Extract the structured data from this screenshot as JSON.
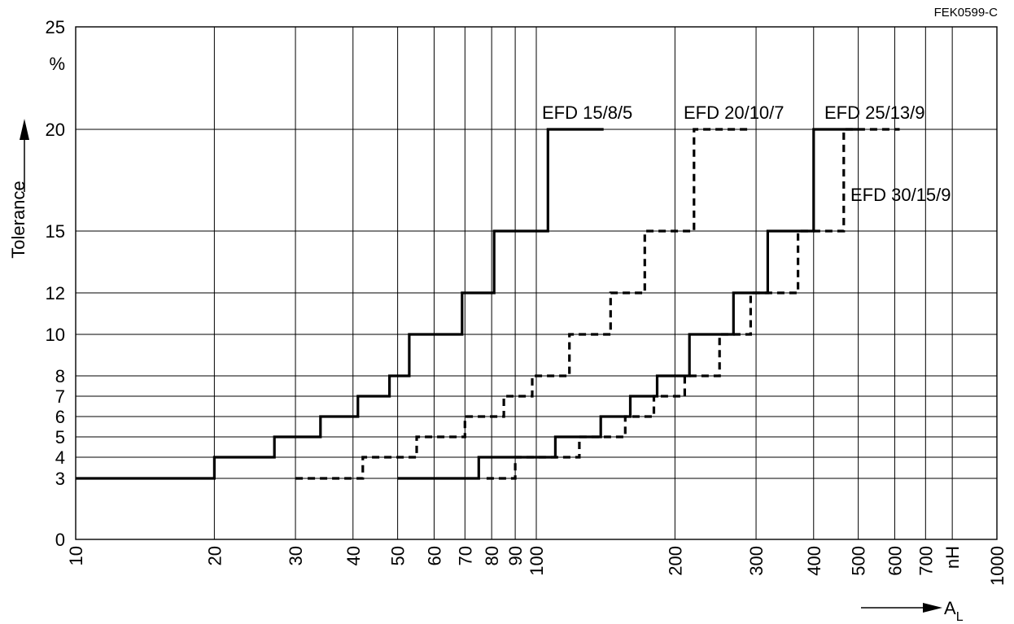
{
  "figure_id": "FEK0599-C",
  "chart_data": {
    "type": "line",
    "x_scale": "log",
    "xlim": [
      10,
      1000
    ],
    "x_tick_labels": [
      "10",
      "20",
      "30",
      "40",
      "50",
      "60",
      "70",
      "80",
      "90",
      "100",
      "200",
      "300",
      "400",
      "500",
      "600",
      "700",
      "nH",
      "1000"
    ],
    "x_tick_values": [
      10,
      20,
      30,
      40,
      50,
      60,
      70,
      80,
      90,
      100,
      200,
      300,
      400,
      500,
      600,
      700,
      800,
      1000
    ],
    "y_tick_labels": [
      "0",
      "3",
      "4",
      "5",
      "6",
      "7",
      "8",
      "10",
      "12",
      "15",
      "20",
      "25",
      "%"
    ],
    "y_tick_values": [
      0,
      3,
      4,
      5,
      6,
      7,
      8,
      10,
      12,
      15,
      20,
      25
    ],
    "ylabel": "Tolerance",
    "xlabel_main": "A",
    "xlabel_sub": "L",
    "grid": true,
    "series": [
      {
        "name": "EFD 15/8/5",
        "style": "solid",
        "points": [
          [
            10,
            3
          ],
          [
            20,
            3
          ],
          [
            20,
            4
          ],
          [
            27,
            4
          ],
          [
            27,
            5
          ],
          [
            34,
            5
          ],
          [
            34,
            6
          ],
          [
            41,
            6
          ],
          [
            41,
            7
          ],
          [
            48,
            7
          ],
          [
            48,
            8
          ],
          [
            53,
            8
          ],
          [
            53,
            10
          ],
          [
            69,
            10
          ],
          [
            69,
            12
          ],
          [
            81,
            12
          ],
          [
            81,
            15
          ],
          [
            106,
            15
          ],
          [
            106,
            20
          ],
          [
            140,
            20
          ]
        ]
      },
      {
        "name": "EFD 20/10/7",
        "style": "dashed",
        "points": [
          [
            30,
            3
          ],
          [
            42,
            3
          ],
          [
            42,
            4
          ],
          [
            55,
            4
          ],
          [
            55,
            5
          ],
          [
            70,
            5
          ],
          [
            70,
            6
          ],
          [
            85,
            6
          ],
          [
            85,
            7
          ],
          [
            98,
            7
          ],
          [
            98,
            8
          ],
          [
            118,
            8
          ],
          [
            118,
            10
          ],
          [
            145,
            10
          ],
          [
            145,
            12
          ],
          [
            172,
            12
          ],
          [
            172,
            15
          ],
          [
            220,
            15
          ],
          [
            220,
            20
          ],
          [
            290,
            20
          ]
        ]
      },
      {
        "name": "EFD 25/13/9",
        "style": "solid",
        "points": [
          [
            50,
            3
          ],
          [
            75,
            3
          ],
          [
            75,
            4
          ],
          [
            110,
            4
          ],
          [
            110,
            5
          ],
          [
            138,
            5
          ],
          [
            138,
            6
          ],
          [
            160,
            6
          ],
          [
            160,
            7
          ],
          [
            183,
            7
          ],
          [
            183,
            8
          ],
          [
            215,
            8
          ],
          [
            215,
            10
          ],
          [
            268,
            10
          ],
          [
            268,
            12
          ],
          [
            318,
            12
          ],
          [
            318,
            15
          ],
          [
            400,
            15
          ],
          [
            400,
            20
          ],
          [
            500,
            20
          ]
        ]
      },
      {
        "name": "EFD 30/15/9",
        "style": "dashed",
        "points": [
          [
            78,
            3
          ],
          [
            90,
            3
          ],
          [
            90,
            4
          ],
          [
            124,
            4
          ],
          [
            124,
            5
          ],
          [
            156,
            5
          ],
          [
            156,
            6
          ],
          [
            180,
            6
          ],
          [
            180,
            7
          ],
          [
            210,
            7
          ],
          [
            210,
            8
          ],
          [
            250,
            8
          ],
          [
            250,
            10
          ],
          [
            292,
            10
          ],
          [
            292,
            12
          ],
          [
            370,
            12
          ],
          [
            370,
            15
          ],
          [
            465,
            15
          ],
          [
            465,
            20
          ],
          [
            615,
            20
          ]
        ]
      }
    ]
  }
}
